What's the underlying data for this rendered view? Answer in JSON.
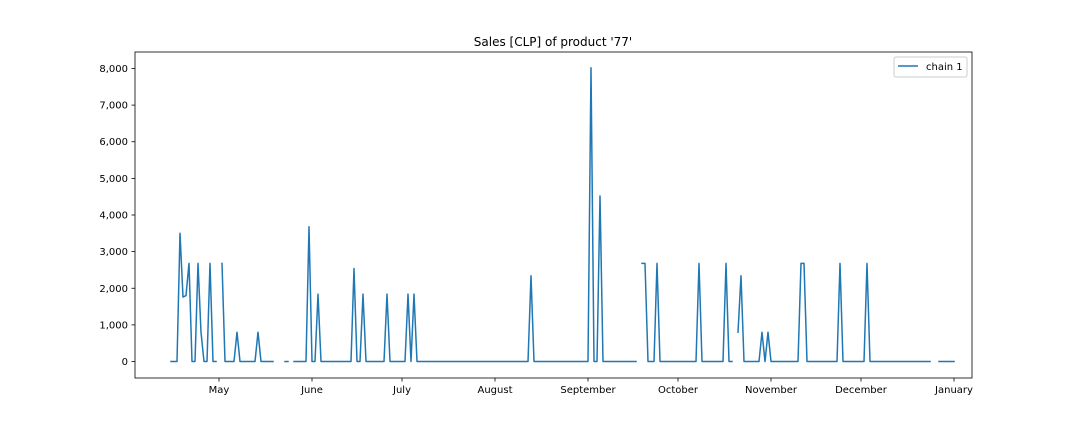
{
  "chart_data": {
    "type": "line",
    "title": "Sales [CLP] of product '77'",
    "xlabel": "",
    "ylabel": "",
    "x_ticks": [
      {
        "label": "May",
        "date": "2019-05-01"
      },
      {
        "label": "June",
        "date": "2019-06-01"
      },
      {
        "label": "July",
        "date": "2019-07-01"
      },
      {
        "label": "August",
        "date": "2019-08-01"
      },
      {
        "label": "September",
        "date": "2019-09-01"
      },
      {
        "label": "October",
        "date": "2019-10-01"
      },
      {
        "label": "November",
        "date": "2019-11-01"
      },
      {
        "label": "December",
        "date": "2019-12-01"
      },
      {
        "label": "January",
        "date": "2020-01-01"
      }
    ],
    "y_ticks": [
      {
        "label": "0",
        "value": 0
      },
      {
        "label": "1,000",
        "value": 1000
      },
      {
        "label": "2,000",
        "value": 2000
      },
      {
        "label": "3,000",
        "value": 3000
      },
      {
        "label": "4,000",
        "value": 4000
      },
      {
        "label": "5,000",
        "value": 5000
      },
      {
        "label": "6,000",
        "value": 6000
      },
      {
        "label": "7,000",
        "value": 7000
      },
      {
        "label": "8,000",
        "value": 8000
      }
    ],
    "xlim": [
      "2019-04-03",
      "2020-01-07"
    ],
    "ylim": [
      -450,
      8450
    ],
    "grid": false,
    "legend_position": "top-right",
    "series": [
      {
        "name": "chain 1",
        "color": "#1f77b4",
        "segments": [
          [
            [
              "2019-04-15",
              0
            ],
            [
              "2019-04-17",
              0
            ],
            [
              "2019-04-18",
              3500
            ],
            [
              "2019-04-19",
              1760
            ],
            [
              "2019-04-20",
              1800
            ],
            [
              "2019-04-21",
              2680
            ],
            [
              "2019-04-22",
              0
            ],
            [
              "2019-04-23",
              0
            ],
            [
              "2019-04-24",
              2680
            ],
            [
              "2019-04-25",
              800
            ],
            [
              "2019-04-26",
              0
            ],
            [
              "2019-04-27",
              0
            ],
            [
              "2019-04-28",
              2680
            ],
            [
              "2019-04-29",
              0
            ],
            [
              "2019-04-30",
              0
            ]
          ],
          [
            [
              "2019-05-02",
              2680
            ],
            [
              "2019-05-03",
              0
            ],
            [
              "2019-05-04",
              0
            ],
            [
              "2019-05-06",
              0
            ],
            [
              "2019-05-07",
              800
            ],
            [
              "2019-05-08",
              0
            ],
            [
              "2019-05-09",
              0
            ],
            [
              "2019-05-11",
              0
            ],
            [
              "2019-05-13",
              0
            ],
            [
              "2019-05-14",
              800
            ],
            [
              "2019-05-15",
              0
            ],
            [
              "2019-05-17",
              0
            ],
            [
              "2019-05-19",
              0
            ]
          ],
          [
            [
              "2019-05-23",
              0
            ],
            [
              "2019-05-24",
              0
            ]
          ],
          [
            [
              "2019-05-26",
              0
            ],
            [
              "2019-05-30",
              0
            ],
            [
              "2019-05-31",
              3680
            ],
            [
              "2019-06-01",
              0
            ],
            [
              "2019-06-02",
              0
            ],
            [
              "2019-06-03",
              1840
            ],
            [
              "2019-06-04",
              0
            ],
            [
              "2019-06-07",
              0
            ],
            [
              "2019-06-10",
              0
            ],
            [
              "2019-06-14",
              0
            ],
            [
              "2019-06-15",
              2540
            ],
            [
              "2019-06-16",
              0
            ],
            [
              "2019-06-17",
              0
            ],
            [
              "2019-06-18",
              1840
            ],
            [
              "2019-06-19",
              0
            ],
            [
              "2019-06-22",
              0
            ],
            [
              "2019-06-23",
              0
            ],
            [
              "2019-06-24",
              0
            ],
            [
              "2019-06-25",
              0
            ],
            [
              "2019-06-26",
              1840
            ],
            [
              "2019-06-27",
              0
            ],
            [
              "2019-06-30",
              0
            ],
            [
              "2019-07-01",
              0
            ],
            [
              "2019-07-02",
              0
            ],
            [
              "2019-07-03",
              1840
            ],
            [
              "2019-07-04",
              0
            ],
            [
              "2019-07-05",
              1840
            ],
            [
              "2019-07-06",
              0
            ],
            [
              "2019-07-10",
              0
            ],
            [
              "2019-07-20",
              0
            ],
            [
              "2019-07-31",
              0
            ],
            [
              "2019-08-10",
              0
            ],
            [
              "2019-08-12",
              0
            ],
            [
              "2019-08-13",
              2340
            ],
            [
              "2019-08-14",
              0
            ],
            [
              "2019-08-20",
              0
            ],
            [
              "2019-08-31",
              0
            ],
            [
              "2019-09-01",
              0
            ],
            [
              "2019-09-02",
              8020
            ],
            [
              "2019-09-03",
              0
            ],
            [
              "2019-09-04",
              0
            ],
            [
              "2019-09-05",
              4520
            ],
            [
              "2019-09-06",
              0
            ],
            [
              "2019-09-10",
              0
            ],
            [
              "2019-09-16",
              0
            ],
            [
              "2019-09-17",
              0
            ]
          ],
          [
            [
              "2019-09-19",
              2680
            ],
            [
              "2019-09-20",
              2680
            ],
            [
              "2019-09-21",
              0
            ],
            [
              "2019-09-22",
              0
            ],
            [
              "2019-09-23",
              0
            ],
            [
              "2019-09-24",
              2680
            ],
            [
              "2019-09-25",
              0
            ],
            [
              "2019-09-30",
              0
            ],
            [
              "2019-10-05",
              0
            ],
            [
              "2019-10-07",
              0
            ],
            [
              "2019-10-08",
              2680
            ],
            [
              "2019-10-09",
              0
            ],
            [
              "2019-10-12",
              0
            ],
            [
              "2019-10-16",
              0
            ],
            [
              "2019-10-17",
              2680
            ],
            [
              "2019-10-18",
              0
            ],
            [
              "2019-10-19",
              0
            ]
          ],
          [
            [
              "2019-10-21",
              800
            ],
            [
              "2019-10-22",
              2340
            ],
            [
              "2019-10-23",
              0
            ],
            [
              "2019-10-24",
              0
            ],
            [
              "2019-10-26",
              0
            ],
            [
              "2019-10-28",
              0
            ],
            [
              "2019-10-29",
              800
            ],
            [
              "2019-10-30",
              0
            ],
            [
              "2019-10-31",
              800
            ],
            [
              "2019-11-01",
              0
            ],
            [
              "2019-11-05",
              0
            ],
            [
              "2019-11-09",
              0
            ],
            [
              "2019-11-10",
              0
            ],
            [
              "2019-11-11",
              2680
            ],
            [
              "2019-11-12",
              2680
            ],
            [
              "2019-11-13",
              0
            ],
            [
              "2019-11-20",
              0
            ],
            [
              "2019-11-23",
              0
            ],
            [
              "2019-11-24",
              2680
            ],
            [
              "2019-11-25",
              0
            ],
            [
              "2019-11-30",
              0
            ],
            [
              "2019-12-02",
              0
            ],
            [
              "2019-12-03",
              2680
            ],
            [
              "2019-12-04",
              0
            ],
            [
              "2019-12-10",
              0
            ],
            [
              "2019-12-20",
              0
            ],
            [
              "2019-12-24",
              0
            ]
          ],
          [
            [
              "2019-12-27",
              0
            ],
            [
              "2020-01-01",
              0
            ]
          ]
        ]
      }
    ]
  }
}
